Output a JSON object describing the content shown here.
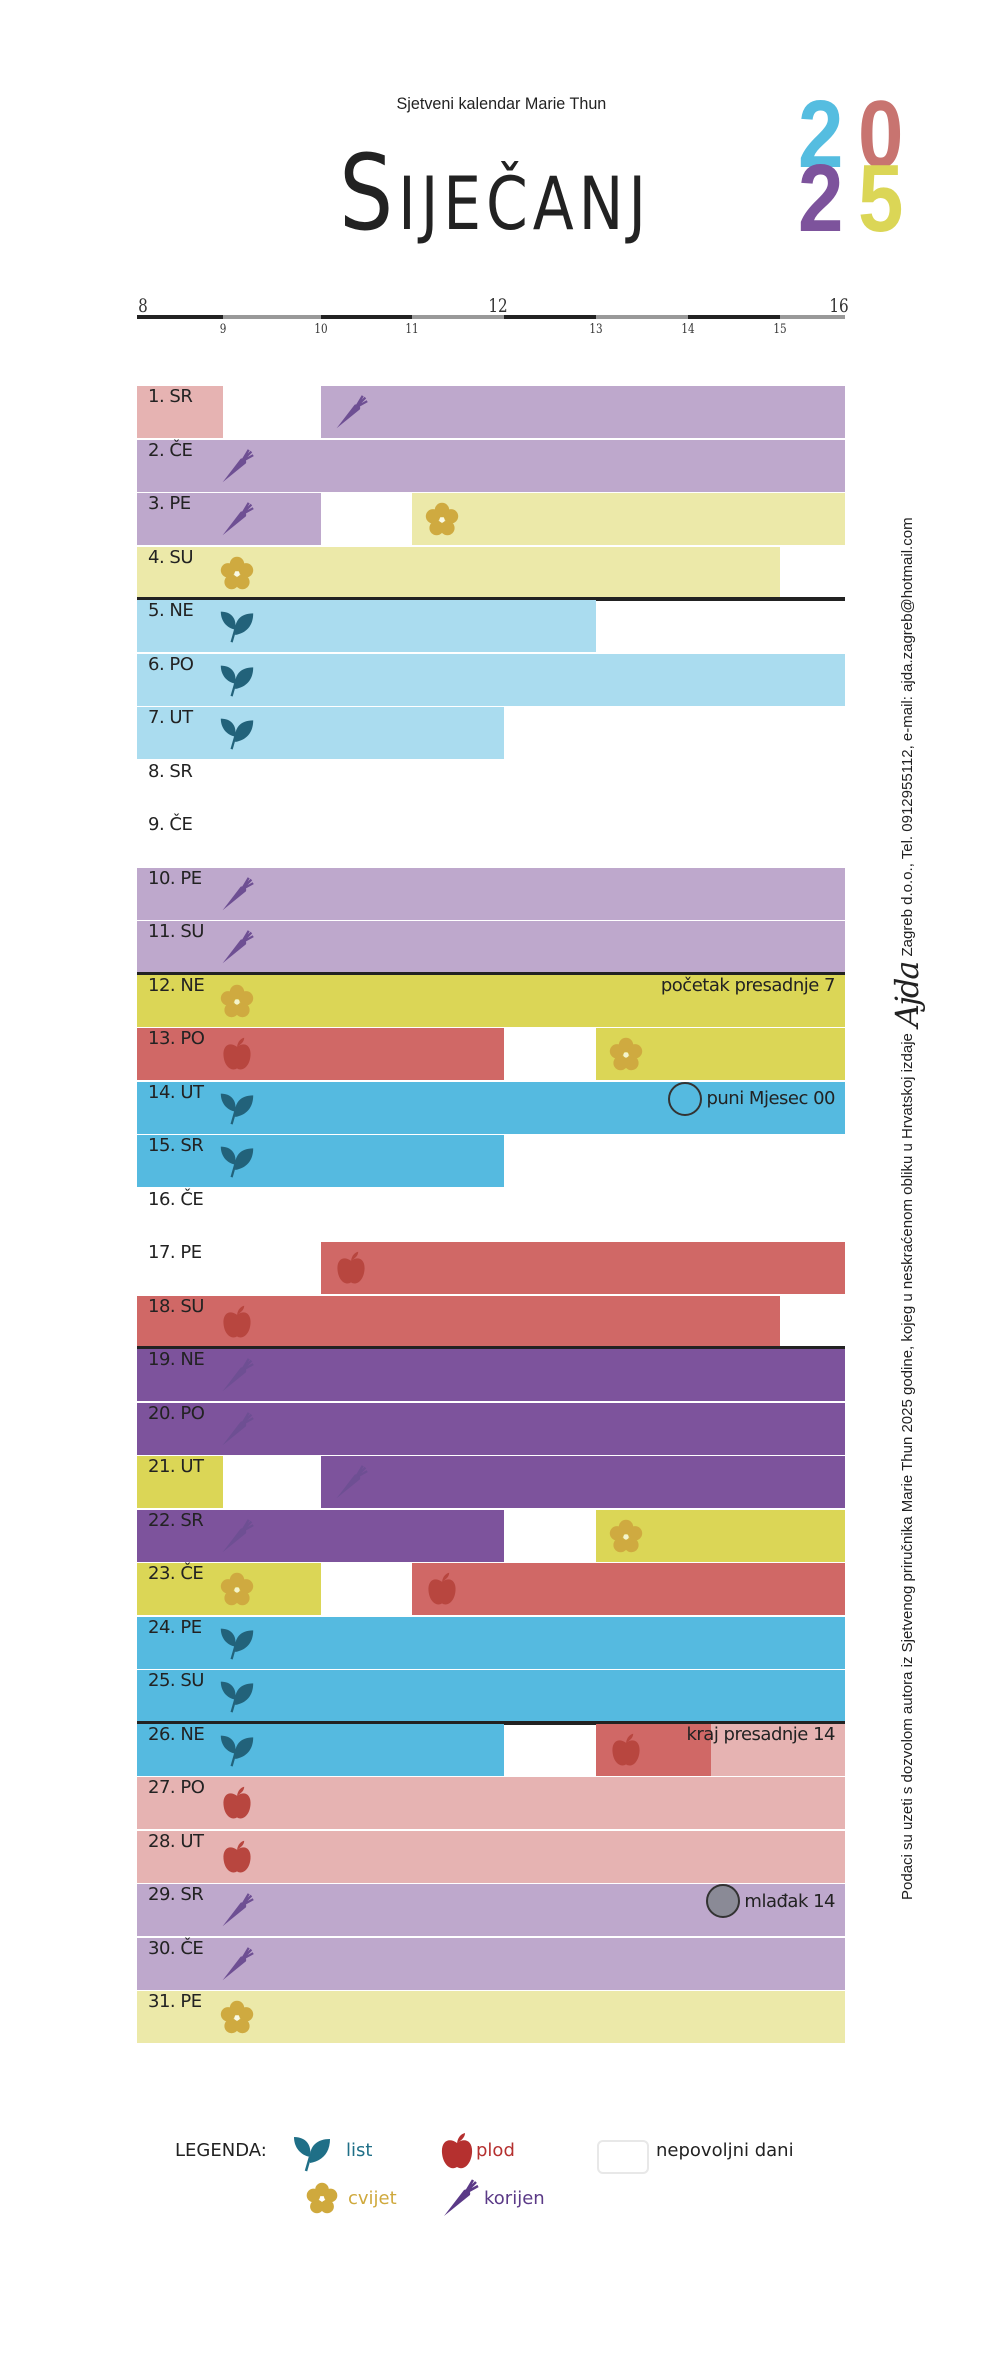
{
  "header": {
    "subtitle": "Sjetveni kalendar Marie Thun",
    "month": "Siječanj",
    "year_digits": [
      {
        "d": "2",
        "color": "#55bde0"
      },
      {
        "d": "0",
        "color": "#c87470"
      },
      {
        "d": "2",
        "color": "#7d539c"
      },
      {
        "d": "5",
        "color": "#dbd656"
      }
    ]
  },
  "axis": {
    "major_labels": [
      "8",
      "12",
      "16"
    ],
    "minor_labels": [
      "9",
      "10",
      "11",
      "13",
      "14",
      "15"
    ],
    "hours": [
      8,
      9,
      10,
      11,
      12,
      13,
      14,
      15,
      16
    ]
  },
  "colors": {
    "pink": "#e6b3b2",
    "lilac": "#bea8cc",
    "paleyellow": "#ece9a9",
    "paleblue": "#aadcef",
    "yellow": "#dbd656",
    "red": "#d06866",
    "blue": "#55bae0",
    "purple": "#7d539c"
  },
  "days": [
    {
      "label": "1. SR",
      "segs": [
        [
          8,
          9,
          "pink",
          null
        ],
        [
          10,
          16,
          "lilac",
          "korijen"
        ]
      ]
    },
    {
      "label": "2. ČE",
      "segs": [
        [
          8,
          16,
          "lilac",
          "korijen"
        ]
      ]
    },
    {
      "label": "3.  PE",
      "segs": [
        [
          8,
          10,
          "lilac",
          "korijen"
        ],
        [
          11,
          16,
          "paleyellow",
          "cvijet"
        ]
      ]
    },
    {
      "label": "4. SU",
      "segs": [
        [
          8,
          15,
          "paleyellow",
          "cvijet"
        ]
      ],
      "week_end": true
    },
    {
      "label": "5. NE",
      "segs": [
        [
          8,
          13,
          "paleblue",
          "list"
        ]
      ]
    },
    {
      "label": "6. PO",
      "segs": [
        [
          8,
          16,
          "paleblue",
          "list"
        ]
      ]
    },
    {
      "label": "7. UT",
      "segs": [
        [
          8,
          12,
          "paleblue",
          "list"
        ]
      ]
    },
    {
      "label": "8. SR",
      "segs": []
    },
    {
      "label": "9. ČE",
      "segs": []
    },
    {
      "label": "10. PE",
      "segs": [
        [
          8,
          16,
          "lilac",
          "korijen"
        ]
      ]
    },
    {
      "label": "11. SU",
      "segs": [
        [
          8,
          16,
          "lilac",
          "korijen"
        ]
      ],
      "week_end": true
    },
    {
      "label": "12. NE",
      "segs": [
        [
          8,
          16,
          "yellow",
          "cvijet"
        ]
      ],
      "note": "početak presadnje 7"
    },
    {
      "label": "13. PO",
      "segs": [
        [
          8,
          12,
          "red",
          "plod"
        ],
        [
          13,
          16,
          "yellow",
          "cvijet"
        ]
      ]
    },
    {
      "label": "14. UT",
      "segs": [
        [
          8,
          16,
          "blue",
          "list"
        ]
      ],
      "note": "puni Mjesec 00",
      "moon": "full-moon"
    },
    {
      "label": "15. SR",
      "segs": [
        [
          8,
          12,
          "blue",
          "list"
        ]
      ]
    },
    {
      "label": "16. ČE",
      "segs": []
    },
    {
      "label": "17. PE",
      "segs": [
        [
          10,
          16,
          "red",
          "plod"
        ]
      ]
    },
    {
      "label": "18. SU",
      "segs": [
        [
          8,
          15,
          "red",
          "plod"
        ]
      ],
      "week_end": true
    },
    {
      "label": "19. NE",
      "segs": [
        [
          8,
          16,
          "purple",
          "korijen"
        ]
      ]
    },
    {
      "label": "20. PO",
      "segs": [
        [
          8,
          16,
          "purple",
          "korijen"
        ]
      ]
    },
    {
      "label": "21. UT",
      "segs": [
        [
          8,
          9,
          "yellow",
          null
        ],
        [
          10,
          16,
          "purple",
          "korijen"
        ]
      ]
    },
    {
      "label": "22. SR",
      "segs": [
        [
          8,
          12,
          "purple",
          "korijen"
        ],
        [
          13,
          16,
          "yellow",
          "cvijet"
        ]
      ]
    },
    {
      "label": "23. ČE",
      "segs": [
        [
          8,
          10,
          "yellow",
          "cvijet"
        ],
        [
          11,
          16,
          "red",
          "plod"
        ]
      ]
    },
    {
      "label": "24. PE",
      "segs": [
        [
          8,
          16,
          "blue",
          "list"
        ]
      ]
    },
    {
      "label": "25. SU",
      "segs": [
        [
          8,
          16,
          "blue",
          "list"
        ]
      ],
      "week_end": true
    },
    {
      "label": "26. NE",
      "segs": [
        [
          8,
          12,
          "blue",
          "list"
        ],
        [
          13,
          14.25,
          "red",
          "plod"
        ],
        [
          14.25,
          16,
          "pink",
          null
        ]
      ],
      "note": "kraj presadnje 14"
    },
    {
      "label": "27. PO",
      "segs": [
        [
          8,
          16,
          "pink",
          "plod"
        ]
      ]
    },
    {
      "label": "28. UT",
      "segs": [
        [
          8,
          16,
          "pink",
          "plod"
        ]
      ]
    },
    {
      "label": "29. SR",
      "segs": [
        [
          8,
          16,
          "lilac",
          "korijen"
        ]
      ],
      "note": "mlađak 14",
      "moon": "new-moon"
    },
    {
      "label": "30. ČE",
      "segs": [
        [
          8,
          16,
          "lilac",
          "korijen"
        ]
      ]
    },
    {
      "label": "31. PE",
      "segs": [
        [
          8,
          16,
          "paleyellow",
          "cvijet"
        ]
      ]
    }
  ],
  "legend": {
    "title": "LEGENDA:",
    "list": "list",
    "plod": "plod",
    "cvijet": "cvijet",
    "korijen": "korijen",
    "unfavorable": "nepovoljni dani",
    "text_colors": {
      "list": "#1f6f87",
      "plod": "#b5302f",
      "cvijet": "#cfa93d",
      "korijen": "#5b3a87"
    }
  },
  "side_note": {
    "before": "Podaci su uzeti s dozvolom autora iz Sjetvenog priručnika Marie Thun 2025 godine, kojeg u  neskraćenom obliku u Hrvatskoj izdaje",
    "logo": "Ajda",
    "after": "Zagreb d.o.o., Tel. 0912955112, e-mail: ajda.zagreb@hotmail.com"
  }
}
